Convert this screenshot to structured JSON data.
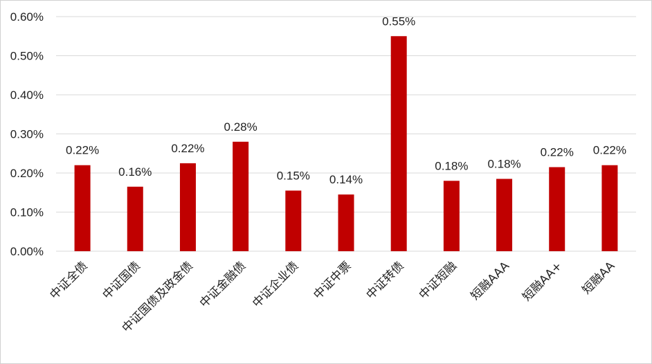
{
  "chart_data": {
    "type": "bar",
    "categories": [
      "中证全债",
      "中证国债",
      "中证国债及政金债",
      "中证金融债",
      "中证企业债",
      "中证中票",
      "中证转债",
      "中证短融",
      "短融AAA",
      "短融AA+",
      "短融AA"
    ],
    "values": [
      0.22,
      0.165,
      0.225,
      0.28,
      0.155,
      0.145,
      0.55,
      0.18,
      0.185,
      0.215,
      0.22
    ],
    "data_labels": [
      "0.22%",
      "0.16%",
      "0.22%",
      "0.28%",
      "0.15%",
      "0.14%",
      "0.55%",
      "0.18%",
      "0.18%",
      "0.22%",
      "0.22%"
    ],
    "y_ticks": [
      "0.00%",
      "0.10%",
      "0.20%",
      "0.30%",
      "0.40%",
      "0.50%",
      "0.60%"
    ],
    "ylim": [
      0,
      0.6
    ],
    "grid": true,
    "legend": "none",
    "bar_color": "#c00000",
    "grid_color": "#d9d9d9"
  }
}
